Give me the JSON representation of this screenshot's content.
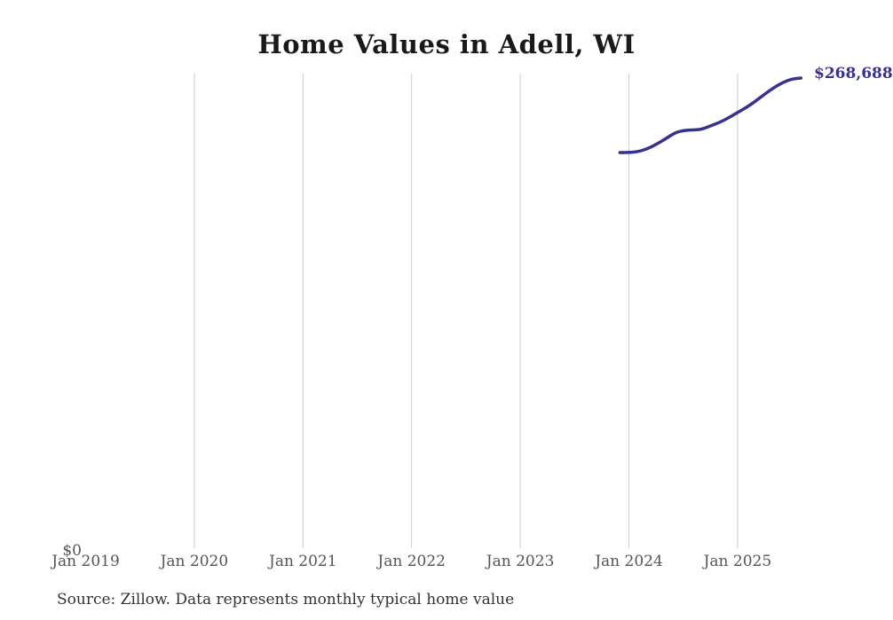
{
  "title": "Home Values in Adell, WI",
  "source_note": "Source: Zillow. Data represents monthly typical home value",
  "y_zero_label": "$0",
  "end_value_label": "$268,688",
  "colors": {
    "line": "#37318f",
    "end_label_text": "#37318f",
    "gridline": "#cccccc",
    "axis_text": "#555555",
    "title_text": "#1a1a1a",
    "source_text": "#333333",
    "background": "#ffffff"
  },
  "chart_data": {
    "type": "line",
    "title": "Home Values in Adell, WI",
    "series_name": "Monthly typical home value",
    "x": [
      "2023-12",
      "2024-01",
      "2024-02",
      "2024-03",
      "2024-04",
      "2024-05",
      "2024-06",
      "2024-07",
      "2024-08",
      "2024-09",
      "2024-10",
      "2024-11",
      "2024-12",
      "2025-01",
      "2025-02",
      "2025-03",
      "2025-04",
      "2025-05",
      "2025-06",
      "2025-07",
      "2025-08"
    ],
    "values": [
      226400,
      226400,
      226900,
      228500,
      231000,
      234000,
      237500,
      239000,
      239300,
      239500,
      241500,
      243500,
      246100,
      249100,
      252100,
      255600,
      259600,
      263200,
      266200,
      268200,
      268688
    ],
    "last_value_label": "$268,688",
    "xlabel": "",
    "ylabel": "",
    "ylim": [
      0,
      270000
    ],
    "y_tick_labels": [
      "$0"
    ],
    "x_ticks": [
      {
        "label": "Jan 2019",
        "year": 2019,
        "gridline": false
      },
      {
        "label": "Jan 2020",
        "year": 2020,
        "gridline": true
      },
      {
        "label": "Jan 2021",
        "year": 2021,
        "gridline": true
      },
      {
        "label": "Jan 2022",
        "year": 2022,
        "gridline": true
      },
      {
        "label": "Jan 2023",
        "year": 2023,
        "gridline": true
      },
      {
        "label": "Jan 2024",
        "year": 2024,
        "gridline": true
      },
      {
        "label": "Jan 2025",
        "year": 2025,
        "gridline": true
      }
    ],
    "grid": "vertical-only",
    "legend": "none"
  }
}
